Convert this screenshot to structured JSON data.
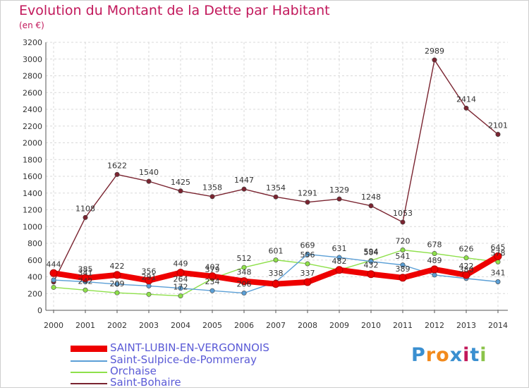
{
  "header": {
    "title": "Evolution du Montant de la Dette par Habitant",
    "subtitle": "(en €)"
  },
  "logo": {
    "text": "Proxiti",
    "colors": [
      "#3a8fd0",
      "#f28a1c",
      "#f28a1c",
      "#3a8fd0",
      "#c2185b",
      "#3a8fd0",
      "#8bc34a"
    ]
  },
  "chart_data": {
    "type": "line",
    "x": [
      2000,
      2001,
      2002,
      2003,
      2004,
      2005,
      2006,
      2007,
      2008,
      2009,
      2010,
      2011,
      2012,
      2013,
      2014
    ],
    "ylim": [
      0,
      3200
    ],
    "yticks": [
      0,
      200,
      400,
      600,
      800,
      1000,
      1200,
      1400,
      1600,
      1800,
      2000,
      2200,
      2400,
      2600,
      2800,
      3000,
      3200
    ],
    "grid": true,
    "legend_position": "bottom-left",
    "series": [
      {
        "name": "Saint-Bohaire",
        "color": "#7a2430",
        "values": [
          339,
          1108,
          1622,
          1540,
          1425,
          1358,
          1447,
          1354,
          1291,
          1329,
          1248,
          1053,
          2989,
          2414,
          2101
        ],
        "labels": [
          "",
          "1108",
          "1622",
          "1540",
          "1425",
          "1358",
          "1447",
          "1354",
          "1291",
          "1329",
          "1248",
          "1053",
          "2989",
          "2414",
          "2101"
        ]
      },
      {
        "name": "Orchaise",
        "color": "#8ee04a",
        "values": [
          274,
          242,
          209,
          191,
          172,
          379,
          512,
          601,
          556,
          482,
          594,
          720,
          678,
          626,
          578
        ],
        "labels": [
          "",
          "242",
          "209",
          "",
          "172",
          "379",
          "512",
          "601",
          "556",
          "482",
          "594",
          "720",
          "678",
          "626",
          "578"
        ]
      },
      {
        "name": "Saint-Sulpice-de-Pommeray",
        "color": "#5b9fd6",
        "values": [
          362,
          341,
          311,
          291,
          264,
          234,
          206,
          338,
          669,
          631,
          584,
          541,
          422,
          380,
          341
        ],
        "labels": [
          "",
          "341",
          "",
          "291",
          "264",
          "234",
          "206",
          "338",
          "669",
          "631",
          "584",
          "541",
          "",
          "380",
          "341"
        ]
      },
      {
        "name": "SAINT-LUBIN-EN-VERGONNOIS",
        "color": "#ee0000",
        "values": [
          444,
          385,
          422,
          356,
          449,
          407,
          348,
          315,
          337,
          482,
          432,
          389,
          489,
          422,
          645
        ],
        "labels": [
          "444",
          "385",
          "422",
          "356",
          "449",
          "407",
          "348",
          "",
          "337",
          "",
          "432",
          "389",
          "489",
          "422",
          "645"
        ]
      }
    ],
    "legend": [
      {
        "name": "SAINT-LUBIN-EN-VERGONNOIS",
        "color": "#ee0000",
        "thick": true
      },
      {
        "name": "Saint-Sulpice-de-Pommeray",
        "color": "#5b9fd6",
        "thick": false
      },
      {
        "name": "Orchaise",
        "color": "#8ee04a",
        "thick": false
      },
      {
        "name": "Saint-Bohaire",
        "color": "#7a2430",
        "thick": false
      }
    ]
  }
}
